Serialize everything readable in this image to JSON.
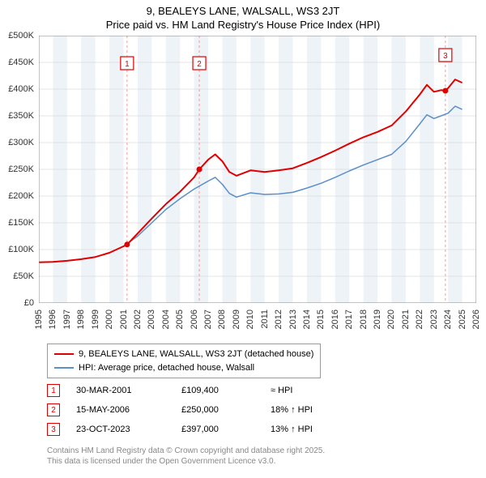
{
  "title_line1": "9, BEALEYS LANE, WALSALL, WS3 2JT",
  "title_line2": "Price paid vs. HM Land Registry's House Price Index (HPI)",
  "title_fontsize": 13,
  "chart": {
    "type": "line",
    "background_color": "#ffffff",
    "band_fill": "#eef3f8",
    "grid_color": "#cccccc",
    "axis_color": "#888888",
    "x_range": [
      1995,
      2026
    ],
    "y_range": [
      0,
      500000
    ],
    "y_ticks": [
      0,
      50000,
      100000,
      150000,
      200000,
      250000,
      300000,
      350000,
      400000,
      450000,
      500000
    ],
    "y_tick_labels": [
      "£0",
      "£50K",
      "£100K",
      "£150K",
      "£200K",
      "£250K",
      "£300K",
      "£350K",
      "£400K",
      "£450K",
      "£500K"
    ],
    "x_ticks": [
      1995,
      1996,
      1997,
      1998,
      1999,
      2000,
      2001,
      2002,
      2003,
      2004,
      2005,
      2006,
      2007,
      2008,
      2009,
      2010,
      2011,
      2012,
      2013,
      2014,
      2015,
      2016,
      2017,
      2018,
      2019,
      2020,
      2021,
      2022,
      2023,
      2024,
      2025,
      2026
    ],
    "marker_lines": [
      {
        "x": 2001.25,
        "label": "1"
      },
      {
        "x": 2006.37,
        "label": "2"
      },
      {
        "x": 2023.81,
        "label": "3"
      }
    ],
    "marker_line_color": "#e8a0a0",
    "marker_box_border": "#e00000",
    "series": [
      {
        "name": "9, BEALEYS LANE, WALSALL, WS3 2JT (detached house)",
        "color": "#e00000",
        "line_width": 2,
        "points": [
          [
            1995,
            76000
          ],
          [
            1996,
            77000
          ],
          [
            1997,
            79000
          ],
          [
            1998,
            82000
          ],
          [
            1999,
            86000
          ],
          [
            2000,
            94000
          ],
          [
            2001,
            106000
          ],
          [
            2001.25,
            109400
          ],
          [
            2002,
            130000
          ],
          [
            2003,
            158000
          ],
          [
            2004,
            185000
          ],
          [
            2005,
            208000
          ],
          [
            2006,
            235000
          ],
          [
            2006.37,
            250000
          ],
          [
            2007,
            268000
          ],
          [
            2007.5,
            278000
          ],
          [
            2008,
            265000
          ],
          [
            2008.5,
            245000
          ],
          [
            2009,
            238000
          ],
          [
            2010,
            248000
          ],
          [
            2011,
            245000
          ],
          [
            2012,
            248000
          ],
          [
            2013,
            252000
          ],
          [
            2014,
            262000
          ],
          [
            2015,
            273000
          ],
          [
            2016,
            285000
          ],
          [
            2017,
            298000
          ],
          [
            2018,
            310000
          ],
          [
            2019,
            320000
          ],
          [
            2020,
            332000
          ],
          [
            2021,
            358000
          ],
          [
            2022,
            390000
          ],
          [
            2022.5,
            408000
          ],
          [
            2023,
            395000
          ],
          [
            2023.5,
            398000
          ],
          [
            2023.81,
            397000
          ],
          [
            2024,
            402000
          ],
          [
            2024.5,
            418000
          ],
          [
            2025,
            412000
          ]
        ],
        "sale_markers": [
          {
            "x": 2001.25,
            "y": 109400
          },
          {
            "x": 2006.37,
            "y": 250000
          },
          {
            "x": 2023.81,
            "y": 397000
          }
        ]
      },
      {
        "name": "HPI: Average price, detached house, Walsall",
        "color": "#5b8fc7",
        "line_width": 1.5,
        "points": [
          [
            1995,
            76000
          ],
          [
            1996,
            77000
          ],
          [
            1997,
            79000
          ],
          [
            1998,
            82000
          ],
          [
            1999,
            86000
          ],
          [
            2000,
            94000
          ],
          [
            2001,
            106000
          ],
          [
            2002,
            125000
          ],
          [
            2003,
            150000
          ],
          [
            2004,
            175000
          ],
          [
            2005,
            195000
          ],
          [
            2006,
            213000
          ],
          [
            2007,
            228000
          ],
          [
            2007.5,
            235000
          ],
          [
            2008,
            222000
          ],
          [
            2008.5,
            205000
          ],
          [
            2009,
            198000
          ],
          [
            2010,
            206000
          ],
          [
            2011,
            203000
          ],
          [
            2012,
            204000
          ],
          [
            2013,
            207000
          ],
          [
            2014,
            215000
          ],
          [
            2015,
            224000
          ],
          [
            2016,
            235000
          ],
          [
            2017,
            247000
          ],
          [
            2018,
            258000
          ],
          [
            2019,
            268000
          ],
          [
            2020,
            278000
          ],
          [
            2021,
            302000
          ],
          [
            2022,
            335000
          ],
          [
            2022.5,
            352000
          ],
          [
            2023,
            345000
          ],
          [
            2023.5,
            350000
          ],
          [
            2024,
            355000
          ],
          [
            2024.5,
            368000
          ],
          [
            2025,
            362000
          ]
        ]
      }
    ]
  },
  "legend": {
    "items": [
      {
        "color": "#e00000",
        "label": "9, BEALEYS LANE, WALSALL, WS3 2JT (detached house)"
      },
      {
        "color": "#5b8fc7",
        "label": "HPI: Average price, detached house, Walsall"
      }
    ]
  },
  "markers_table": {
    "rows": [
      {
        "num": "1",
        "date": "30-MAR-2001",
        "price": "£109,400",
        "rel": "≈ HPI"
      },
      {
        "num": "2",
        "date": "15-MAY-2006",
        "price": "£250,000",
        "rel": "18% ↑ HPI"
      },
      {
        "num": "3",
        "date": "23-OCT-2023",
        "price": "£397,000",
        "rel": "13% ↑ HPI"
      }
    ]
  },
  "footer_line1": "Contains HM Land Registry data © Crown copyright and database right 2025.",
  "footer_line2": "This data is licensed under the Open Government Licence v3.0."
}
